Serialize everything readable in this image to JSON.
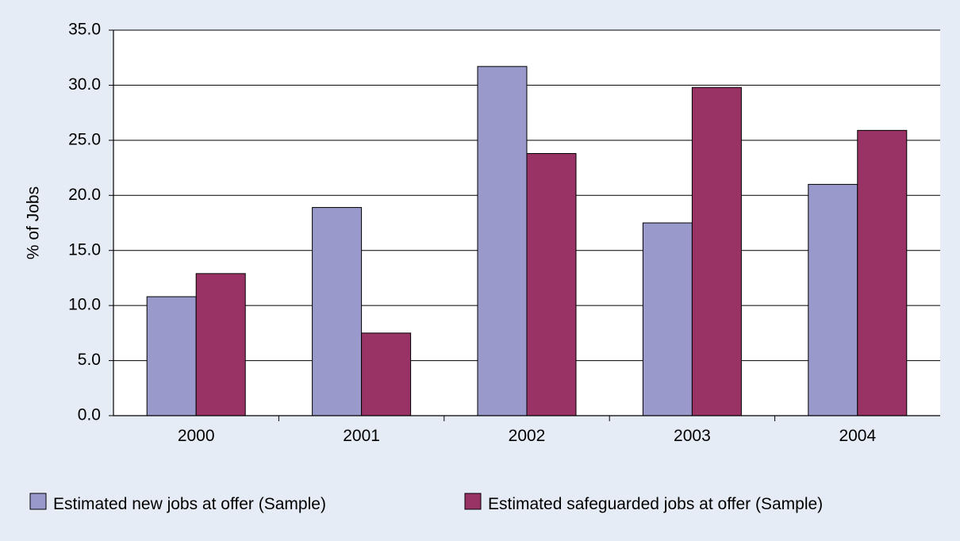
{
  "chart_data": {
    "type": "bar",
    "title": "",
    "xlabel": "",
    "ylabel": "% of Jobs",
    "ylim": [
      0,
      35
    ],
    "yticks": [
      "0.0",
      "5.0",
      "10.0",
      "15.0",
      "20.0",
      "25.0",
      "30.0",
      "35.0"
    ],
    "categories": [
      "2000",
      "2001",
      "2002",
      "2003",
      "2004"
    ],
    "series": [
      {
        "name": "Estimated new jobs at offer (Sample)",
        "color": "#9999cc",
        "values": [
          10.8,
          18.9,
          31.7,
          17.5,
          21.0
        ]
      },
      {
        "name": "Estimated safeguarded jobs at offer (Sample)",
        "color": "#993366",
        "values": [
          12.9,
          7.5,
          23.8,
          29.8,
          25.9
        ]
      }
    ],
    "grid": true,
    "legend_position": "bottom",
    "background": "#e6ecf6"
  }
}
